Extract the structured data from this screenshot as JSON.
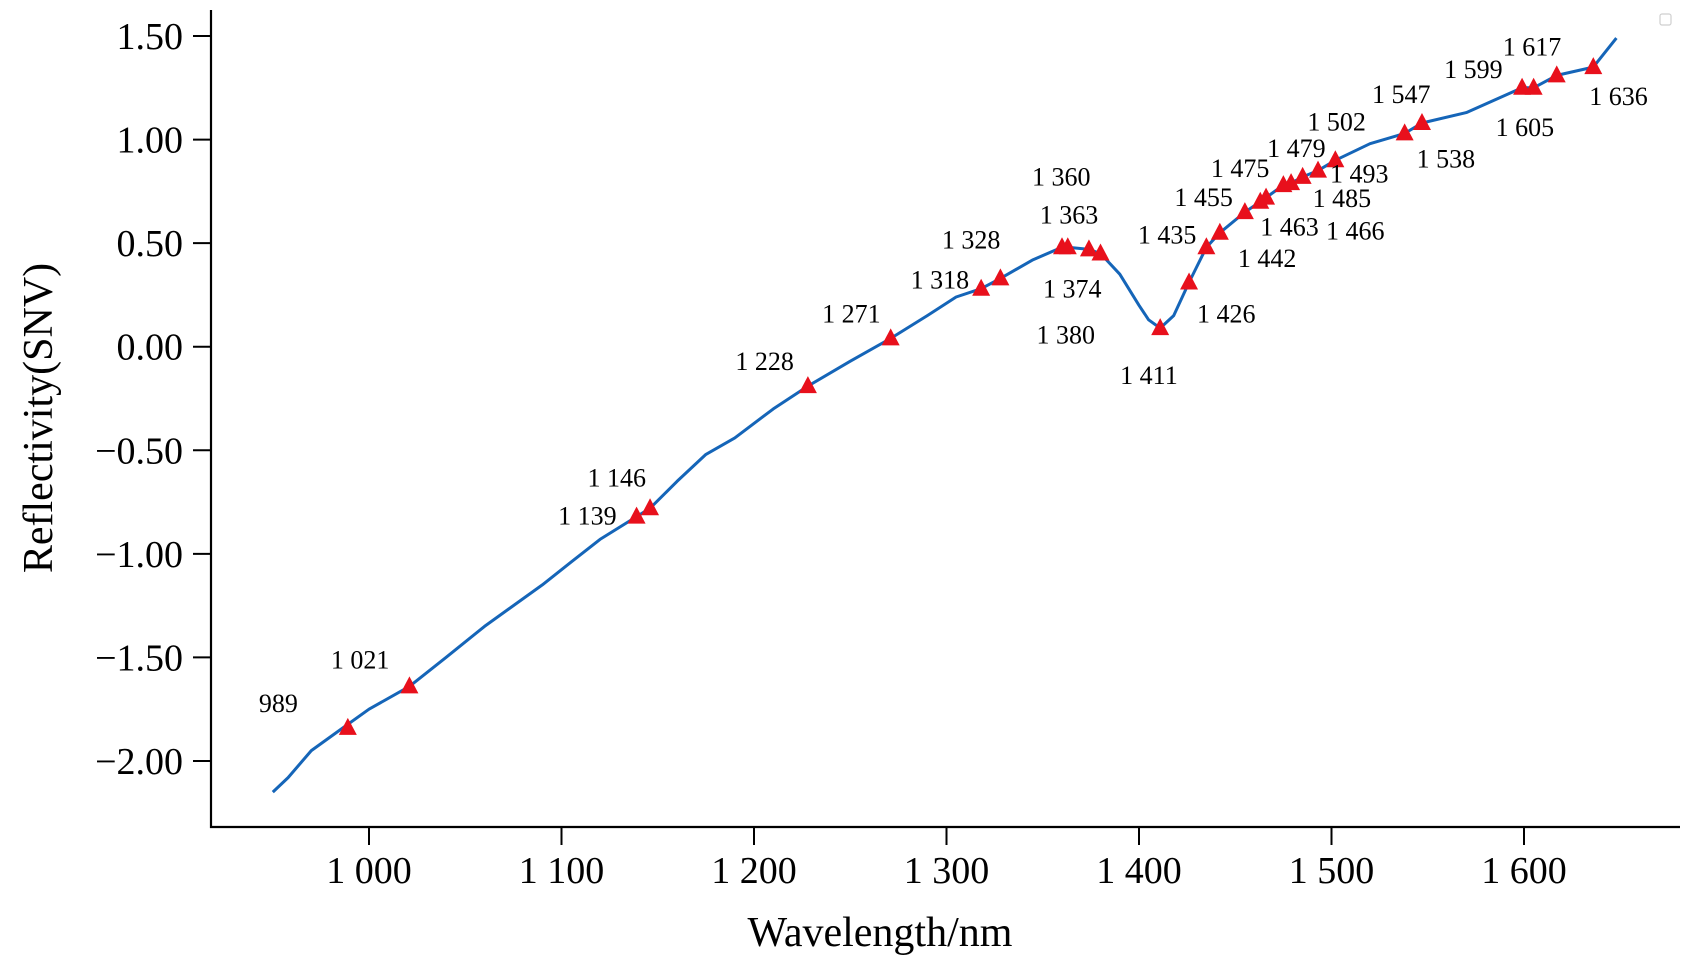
{
  "chart_data": {
    "type": "line",
    "xlabel": "Wavelength/nm",
    "ylabel": "Reflectivity(SNV)",
    "xlim": [
      918,
      1657
    ],
    "ylim": [
      -2.3,
      1.6
    ],
    "xticks": [
      1000,
      1100,
      1200,
      1300,
      1400,
      1500,
      1600
    ],
    "xtick_labels": [
      "1 000",
      "1 100",
      "1 200",
      "1 300",
      "1 400",
      "1 500",
      "1 600"
    ],
    "yticks": [
      1.5,
      1.0,
      0.5,
      0.0,
      -0.5,
      -1.0,
      -1.5,
      -2.0
    ],
    "ytick_labels": [
      "1.50",
      "1.00",
      "0.50",
      "0.00",
      "−0.50",
      "−1.00",
      "−1.50",
      "−2.00"
    ],
    "grid": false,
    "series_color": "#1565b8",
    "marker_color": "#e8101c",
    "series": [
      {
        "x": [
          950,
          958,
          970,
          985,
          1000,
          1021,
          1040,
          1060,
          1075,
          1090,
          1105,
          1120,
          1139,
          1146,
          1160,
          1175,
          1190,
          1210,
          1228,
          1250,
          1271,
          1290,
          1305,
          1318,
          1328,
          1345,
          1360,
          1363,
          1374,
          1380,
          1390,
          1400,
          1405,
          1411,
          1418,
          1426,
          1435,
          1442,
          1455,
          1463,
          1466,
          1475,
          1479,
          1485,
          1493,
          1502,
          1520,
          1538,
          1547,
          1570,
          1599,
          1605,
          1617,
          1636,
          1648
        ],
        "y": [
          -2.15,
          -2.08,
          -1.95,
          -1.85,
          -1.75,
          -1.64,
          -1.5,
          -1.35,
          -1.25,
          -1.15,
          -1.04,
          -0.93,
          -0.82,
          -0.78,
          -0.65,
          -0.52,
          -0.44,
          -0.3,
          -0.19,
          -0.07,
          0.04,
          0.15,
          0.24,
          0.28,
          0.33,
          0.42,
          0.48,
          0.48,
          0.47,
          0.45,
          0.35,
          0.2,
          0.13,
          0.09,
          0.15,
          0.31,
          0.48,
          0.55,
          0.65,
          0.7,
          0.72,
          0.78,
          0.79,
          0.82,
          0.85,
          0.9,
          0.98,
          1.03,
          1.08,
          1.13,
          1.25,
          1.25,
          1.31,
          1.35,
          1.49
        ]
      }
    ],
    "markers": [
      {
        "x": 989,
        "y": -1.84,
        "label": "989"
      },
      {
        "x": 1021,
        "y": -1.64,
        "label": "1 021"
      },
      {
        "x": 1139,
        "y": -0.82,
        "label": "1 139"
      },
      {
        "x": 1146,
        "y": -0.78,
        "label": "1 146"
      },
      {
        "x": 1228,
        "y": -0.19,
        "label": "1 228"
      },
      {
        "x": 1271,
        "y": 0.04,
        "label": "1 271"
      },
      {
        "x": 1318,
        "y": 0.28,
        "label": "1 318"
      },
      {
        "x": 1328,
        "y": 0.33,
        "label": "1 328"
      },
      {
        "x": 1360,
        "y": 0.48,
        "label": "1 360"
      },
      {
        "x": 1363,
        "y": 0.48,
        "label": "1 363"
      },
      {
        "x": 1374,
        "y": 0.47,
        "label": "1 374"
      },
      {
        "x": 1380,
        "y": 0.45,
        "label": "1 380"
      },
      {
        "x": 1411,
        "y": 0.09,
        "label": "1 411"
      },
      {
        "x": 1426,
        "y": 0.31,
        "label": "1 426"
      },
      {
        "x": 1435,
        "y": 0.48,
        "label": "1 435"
      },
      {
        "x": 1442,
        "y": 0.55,
        "label": "1 442"
      },
      {
        "x": 1455,
        "y": 0.65,
        "label": "1 455"
      },
      {
        "x": 1463,
        "y": 0.7,
        "label": "1 463"
      },
      {
        "x": 1466,
        "y": 0.72,
        "label": "1 466"
      },
      {
        "x": 1475,
        "y": 0.78,
        "label": "1 475"
      },
      {
        "x": 1479,
        "y": 0.79,
        "label": "1 479"
      },
      {
        "x": 1485,
        "y": 0.82,
        "label": "1 485"
      },
      {
        "x": 1493,
        "y": 0.85,
        "label": "1 493"
      },
      {
        "x": 1502,
        "y": 0.9,
        "label": "1 502"
      },
      {
        "x": 1538,
        "y": 1.03,
        "label": "1 538"
      },
      {
        "x": 1547,
        "y": 1.08,
        "label": "1 547"
      },
      {
        "x": 1599,
        "y": 1.25,
        "label": "1 599"
      },
      {
        "x": 1605,
        "y": 1.25,
        "label": "1 605"
      },
      {
        "x": 1617,
        "y": 1.31,
        "label": "1 617"
      },
      {
        "x": 1636,
        "y": 1.35,
        "label": "1 636"
      }
    ]
  }
}
